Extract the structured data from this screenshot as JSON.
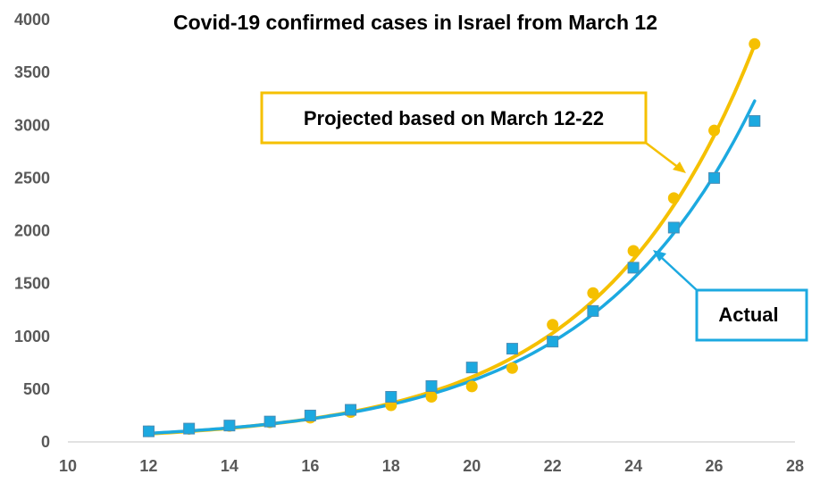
{
  "chart_data": {
    "type": "line",
    "title": "Covid-19 confirmed cases in Israel from March 12",
    "xlabel": "",
    "ylabel": "",
    "xlim": [
      10,
      28
    ],
    "ylim": [
      0,
      4000
    ],
    "xticks": [
      10,
      12,
      14,
      16,
      18,
      20,
      22,
      24,
      26,
      28
    ],
    "yticks": [
      0,
      500,
      1000,
      1500,
      2000,
      2500,
      3000,
      3500,
      4000
    ],
    "grid": false,
    "legend": "none",
    "series": [
      {
        "name": "Projected based on March 12-22",
        "color": "#f5c000",
        "marker": "circle",
        "x": [
          12,
          13,
          14,
          15,
          16,
          17,
          18,
          19,
          20,
          21,
          22,
          23,
          24,
          25,
          26,
          27
        ],
        "values": [
          100,
          123,
          151,
          186,
          229,
          282,
          347,
          427,
          525,
          700,
          1110,
          1410,
          1810,
          2310,
          2950,
          3770
        ],
        "trend": {
          "a": 77.5,
          "b": 0.2588
        }
      },
      {
        "name": "Actual",
        "color": "#1ca9e0",
        "marker": "square",
        "x": [
          12,
          13,
          14,
          15,
          16,
          17,
          18,
          19,
          20,
          21,
          22,
          23,
          24,
          25,
          26,
          27
        ],
        "values": [
          100,
          126,
          155,
          193,
          250,
          304,
          427,
          529,
          705,
          883,
          950,
          1240,
          1650,
          2030,
          2500,
          3040
        ],
        "trend": {
          "a": 81.5,
          "b": 0.2453
        }
      }
    ],
    "annotations": [
      {
        "text": "Projected based on March 12-22",
        "series": 0,
        "color": "#f5c000"
      },
      {
        "text": "Actual",
        "series": 1,
        "color": "#1ca9e0"
      }
    ]
  }
}
